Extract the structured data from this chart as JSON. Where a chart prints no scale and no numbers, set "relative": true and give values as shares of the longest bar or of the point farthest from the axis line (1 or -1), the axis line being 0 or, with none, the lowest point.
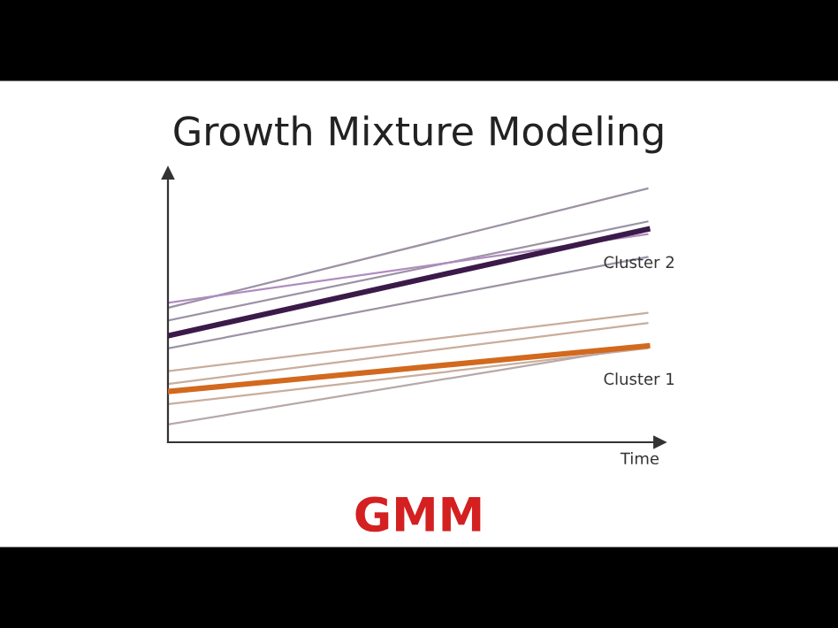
{
  "chart_data": {
    "type": "line",
    "title": "Growth Mixture Modeling",
    "xlabel": "Time",
    "annotations": [
      "GMM"
    ],
    "relative": true,
    "categories": [
      null,
      null
    ],
    "legend": false,
    "tick_labels": false,
    "marker": "none",
    "line_style": "solid",
    "series": [
      {
        "color": "#9c92a4",
        "values": [
          0.53,
          1.0
        ]
      },
      {
        "color": "#9c92a4",
        "values": [
          0.48,
          0.87
        ]
      },
      {
        "color": "#b08cc0",
        "values": [
          0.55,
          0.82
        ]
      },
      {
        "color": "#9c92a4",
        "values": [
          0.37,
          0.73
        ]
      },
      {
        "name": "Cluster 2",
        "color": "#3b1a4a",
        "values": [
          0.42,
          0.84
        ]
      },
      {
        "color": "#c9ad9c",
        "values": [
          0.28,
          0.51
        ]
      },
      {
        "color": "#c9ad9c",
        "values": [
          0.23,
          0.47
        ]
      },
      {
        "color": "#c9ad9c",
        "values": [
          0.15,
          0.37
        ]
      },
      {
        "color": "#b8a8a8",
        "values": [
          0.07,
          0.38
        ]
      },
      {
        "name": "Cluster 1",
        "color": "#d2691e",
        "values": [
          0.2,
          0.38
        ]
      }
    ]
  }
}
